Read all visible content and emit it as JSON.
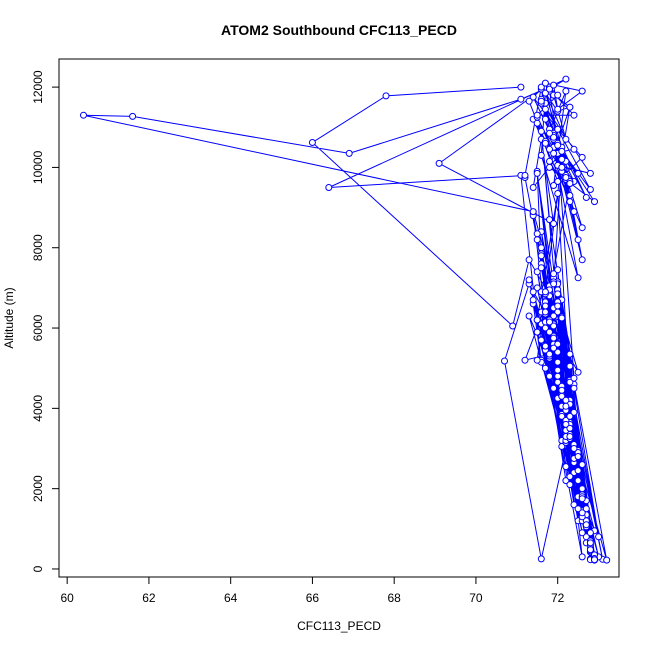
{
  "chart_data": {
    "type": "line",
    "title": "ATOM2 Southbound CFC113_PECD",
    "xlabel": "CFC113_PECD",
    "ylabel": "Altitude (m)",
    "xlim": [
      59.8,
      73.5
    ],
    "ylim": [
      -200,
      12700
    ],
    "xticks": [
      60,
      62,
      64,
      66,
      68,
      70,
      72
    ],
    "yticks": [
      0,
      2000,
      4000,
      6000,
      8000,
      10000,
      12000
    ],
    "grid": false,
    "legend": "none",
    "series": [
      {
        "color": "#0000FF",
        "markers": "open-circle",
        "x": [
          71.1,
          67.8,
          66.0,
          70.9,
          71.3,
          72.1,
          71.5,
          72.6,
          72.2,
          71.8,
          71.4,
          72.7,
          72.3,
          72.8,
          71.9,
          72.1,
          72.9,
          71.6,
          72.2,
          71.7,
          72.5,
          72.0,
          72.4,
          72.8,
          71.6,
          72.3,
          73.0,
          72.0,
          72.6,
          71.5,
          72.2,
          72.9,
          72.1,
          71.7,
          72.7,
          71.9,
          72.3,
          73.1,
          71.8,
          72.4,
          72.0,
          71.5,
          72.6,
          72.2,
          72.8,
          71.8,
          72.1,
          72.9,
          71.6,
          72.3,
          72.0,
          72.7,
          71.9,
          72.5,
          72.1,
          72.8,
          72.3,
          71.7,
          72.6,
          72.0,
          72.5,
          71.3,
          70.7,
          71.6,
          72.4,
          71.8,
          72.3,
          72.9,
          71.7,
          72.2,
          72.7,
          71.6,
          72.0,
          72.5,
          71.9,
          72.3,
          73.0,
          71.5,
          72.1,
          72.6,
          71.8,
          72.2,
          72.9,
          71.3,
          72.0,
          72.4,
          71.7,
          72.3,
          72.7,
          72.0,
          72.2,
          71.6,
          72.5,
          72.1,
          71.9,
          72.6,
          71.7,
          72.3,
          71.5,
          72.0,
          72.8,
          71.6,
          72.5,
          71.7,
          72.1,
          71.4,
          71.6,
          71.1,
          71.2,
          71.5,
          71.9,
          72.1,
          72.6,
          71.7,
          72.0,
          72.2,
          71.6,
          72.8,
          71.8,
          71.9,
          72.7,
          72.3,
          71.5,
          71.3,
          72.2,
          72.8,
          72.0,
          71.8,
          72.1,
          71.4,
          73.2,
          72.4,
          72.0,
          72.6,
          71.9,
          72.3,
          72.9,
          71.7,
          72.2,
          72.7,
          71.6,
          72.4,
          72.1,
          72.6,
          71.8,
          72.3,
          72.0,
          72.8,
          71.4,
          72.5,
          71.9,
          72.2,
          72.9,
          71.7,
          71.2,
          72.0,
          72.6,
          71.9,
          72.3,
          71.6,
          72.1,
          72.5,
          71.8,
          72.2,
          71.5,
          71.6,
          72.4,
          71.9,
          72.7,
          72.0,
          72.3,
          71.8,
          72.6,
          72.1,
          72.9,
          71.5,
          72.4,
          72.0,
          72.7,
          71.8,
          72.3,
          71.6,
          72.5,
          71.9,
          72.2,
          72.8,
          71.7,
          72.4,
          71.9,
          72.6,
          72.0,
          72.3,
          72.8,
          71.4,
          72.1,
          71.7,
          71.5,
          72.2,
          71.6,
          71.8,
          72.4,
          72.0,
          71.9,
          72.3,
          72.1,
          71.7,
          71.6,
          72.5,
          71.9,
          72.2,
          71.7,
          69.1,
          71.9,
          71.6,
          71.4,
          72.1,
          72.6,
          71.8,
          72.3,
          72.0,
          71.7,
          72.5,
          72.0,
          71.8,
          72.3,
          71.9,
          72.4,
          71.6,
          72.8,
          72.0,
          71.7,
          72.2,
          71.4,
          72.6,
          71.9,
          72.1,
          72.9,
          71.8,
          72.3,
          72.0,
          71.5,
          72.5,
          71.7,
          72.2,
          71.9,
          72.6,
          72.0,
          71.4,
          72.4,
          71.8,
          72.2,
          71.6,
          72.7,
          71.9,
          72.1,
          71.5,
          72.3,
          71.8,
          72.0,
          72.8,
          71.6,
          72.4,
          71.9,
          72.2,
          71.7,
          71.3,
          71.6,
          72.1,
          71.8,
          72.3,
          72.0,
          71.7,
          72.2,
          71.9,
          71.8,
          71.1,
          66.9,
          61.6,
          60.4,
          71.4,
          71.9,
          72.1,
          71.5,
          72.3,
          71.7,
          71.6,
          71.2,
          66.4,
          72.2,
          71.8,
          72.4,
          71.5,
          72.0,
          71.7,
          72.6,
          72.0,
          71.9
        ],
        "y": [
          12000,
          11780,
          10620,
          6050,
          7700,
          6280,
          5900,
          1850,
          2550,
          5350,
          8850,
          1250,
          3650,
          250,
          4500,
          3050,
          950,
          6100,
          2200,
          5450,
          1200,
          5150,
          2400,
          230,
          8400,
          4700,
          800,
          6950,
          1750,
          7400,
          3400,
          280,
          6250,
          5550,
          1350,
          7250,
          4150,
          240,
          7050,
          2650,
          9350,
          6200,
          300,
          3950,
          500,
          6800,
          4400,
          270,
          5700,
          2100,
          7450,
          800,
          6100,
          2950,
          3200,
          420,
          5350,
          6350,
          1450,
          6650,
          4900,
          7100,
          5180,
          250,
          3900,
          5250,
          2300,
          250,
          6850,
          3700,
          1050,
          7850,
          4250,
          2200,
          5600,
          3350,
          300,
          5900,
          3850,
          900,
          4800,
          3150,
          220,
          6300,
          4650,
          1600,
          6000,
          3600,
          650,
          7150,
          3200,
          5200,
          1800,
          4350,
          5750,
          1200,
          6550,
          3250,
          7000,
          4800,
          450,
          6900,
          1500,
          5000,
          4050,
          6600,
          5150,
          9800,
          9750,
          8200,
          6500,
          4300,
          1800,
          6650,
          4950,
          3300,
          6400,
          900,
          5300,
          5800,
          1700,
          4200,
          6200,
          7200,
          3450,
          600,
          5600,
          6950,
          3800,
          6700,
          220,
          4600,
          6400,
          2600,
          7350,
          5050,
          350,
          6150,
          3950,
          1200,
          7600,
          4500,
          6700,
          2000,
          5350,
          4100,
          6650,
          480,
          6900,
          2900,
          6050,
          3700,
          260,
          6550,
          5200,
          5400,
          1300,
          6300,
          3300,
          7800,
          4550,
          2450,
          5900,
          3600,
          9900,
          7500,
          3100,
          5500,
          1100,
          7100,
          4650,
          6200,
          1750,
          4300,
          230,
          9850,
          2750,
          6850,
          1500,
          6150,
          3500,
          8000,
          2800,
          5750,
          4200,
          700,
          6400,
          3000,
          7150,
          1400,
          6550,
          3800,
          650,
          8800,
          4450,
          6900,
          8350,
          4050,
          10900,
          8700,
          4750,
          10550,
          10700,
          9600,
          10500,
          11850,
          10300,
          7250,
          10500,
          9700,
          12000,
          10100,
          8600,
          10700,
          9500,
          10400,
          7700,
          10950,
          9150,
          10350,
          11600,
          8200,
          10600,
          10150,
          9300,
          10850,
          8900,
          11700,
          9450,
          10550,
          11450,
          9800,
          11200,
          8500,
          10800,
          10400,
          9150,
          10000,
          11500,
          9650,
          11100,
          9850,
          10650,
          11900,
          9550,
          10250,
          10950,
          11750,
          9650,
          10450,
          10150,
          11600,
          9250,
          10750,
          9900,
          11250,
          9650,
          10850,
          10050,
          9850,
          11650,
          10450,
          10350,
          9750,
          10600,
          11650,
          11950,
          10000,
          11900,
          11500,
          11400,
          11850,
          10700,
          11800,
          12000,
          11700,
          10350,
          11270,
          11300,
          8900,
          7100,
          10200,
          5200,
          9600,
          11200,
          12000,
          9800,
          9500,
          12200,
          11950,
          11300,
          11300,
          11800,
          12100,
          11900,
          11450,
          12050
        ]
      }
    ]
  }
}
